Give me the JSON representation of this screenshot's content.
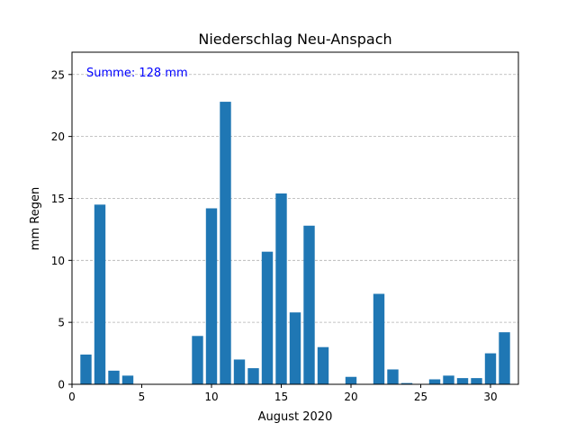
{
  "chart_data": {
    "type": "bar",
    "title": "Niederschlag Neu-Anspach",
    "xlabel": "August 2020",
    "ylabel": "mm Regen",
    "annotation": "Summe: 128 mm",
    "xlim": [
      0,
      32
    ],
    "ylim": [
      0,
      26.8
    ],
    "xticks": [
      0,
      5,
      10,
      15,
      20,
      25,
      30
    ],
    "yticks": [
      0,
      5,
      10,
      15,
      20,
      25
    ],
    "grid": "y-dashed",
    "x": [
      1,
      2,
      3,
      4,
      5,
      6,
      7,
      8,
      9,
      10,
      11,
      12,
      13,
      14,
      15,
      16,
      17,
      18,
      19,
      20,
      21,
      22,
      23,
      24,
      25,
      26,
      27,
      28,
      29,
      30,
      31
    ],
    "values": [
      2.4,
      14.5,
      1.1,
      0.7,
      0,
      0,
      0,
      0,
      3.9,
      14.2,
      22.8,
      2.0,
      1.3,
      10.7,
      15.4,
      5.8,
      12.8,
      3.0,
      0,
      0.6,
      0,
      7.3,
      1.2,
      0.1,
      0,
      0.4,
      0.7,
      0.5,
      0.5,
      2.5,
      4.2
    ],
    "colors": {
      "bar": "#1f77b4",
      "annotation": "#0000ff",
      "grid": "#b0b0b0",
      "axis": "#000000"
    }
  }
}
